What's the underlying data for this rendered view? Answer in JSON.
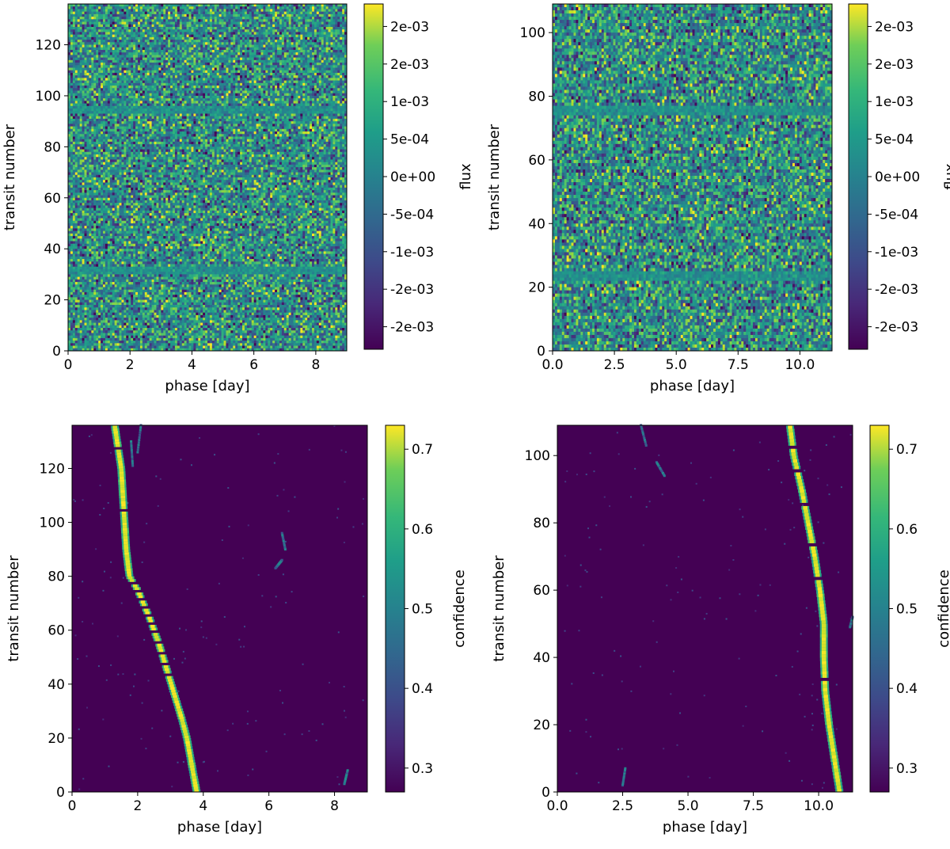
{
  "colors": {
    "viridis_bottom": "#440154",
    "viridis_mid": "#21908c",
    "viridis_top": "#fde725",
    "axis": "#000000"
  },
  "chart_data": [
    {
      "type": "heatmap",
      "id": "flux-a",
      "xlabel": "phase [day]",
      "ylabel": "transit number",
      "xlim": [
        0,
        9
      ],
      "ylim": [
        0,
        136
      ],
      "xticks": [
        0,
        2,
        4,
        6,
        8
      ],
      "xtick_labels": [
        "0",
        "2",
        "4",
        "6",
        "8"
      ],
      "yticks": [
        0,
        20,
        40,
        60,
        80,
        100,
        120
      ],
      "ytick_labels": [
        "0",
        "20",
        "40",
        "60",
        "80",
        "100",
        "120"
      ],
      "colorbar": {
        "label": "flux",
        "vmin": -0.0023,
        "vmax": 0.0023,
        "ticks": [
          -0.002,
          -0.0015,
          -0.001,
          -0.0005,
          0,
          0.0005,
          0.001,
          0.0015,
          0.002
        ],
        "tick_labels": [
          "-2e-03",
          "-2e-03",
          "-1e-03",
          "-5e-04",
          "0e+00",
          "5e-04",
          "1e-03",
          "2e-03",
          "2e-03"
        ]
      },
      "field": "noise",
      "quiet_rows": [
        104,
        41
      ]
    },
    {
      "type": "heatmap",
      "id": "flux-b",
      "xlabel": "phase [day]",
      "ylabel": "transit number",
      "xlim": [
        0,
        11.3
      ],
      "ylim": [
        0,
        109
      ],
      "xticks": [
        0,
        2.5,
        5,
        7.5,
        10
      ],
      "xtick_labels": [
        "0.0",
        "2.5",
        "5.0",
        "7.5",
        "10.0"
      ],
      "yticks": [
        0,
        20,
        40,
        60,
        80,
        100
      ],
      "ytick_labels": [
        "0",
        "20",
        "40",
        "60",
        "80",
        "100"
      ],
      "colorbar": {
        "label": "flux",
        "vmin": -0.0023,
        "vmax": 0.0023,
        "ticks": [
          -0.002,
          -0.0015,
          -0.001,
          -0.0005,
          0,
          0.0005,
          0.001,
          0.0015,
          0.002
        ],
        "tick_labels": [
          "-2e-03",
          "-2e-03",
          "-1e-03",
          "-5e-04",
          "0e+00",
          "5e-04",
          "1e-03",
          "2e-03",
          "2e-03"
        ]
      },
      "field": "noise",
      "quiet_rows": [
        33,
        85
      ]
    },
    {
      "type": "heatmap",
      "id": "confidence-a",
      "xlabel": "phase [day]",
      "ylabel": "transit number",
      "xlim": [
        0,
        9
      ],
      "ylim": [
        0,
        136
      ],
      "xticks": [
        0,
        2,
        4,
        6,
        8
      ],
      "xtick_labels": [
        "0",
        "2",
        "4",
        "6",
        "8"
      ],
      "yticks": [
        0,
        20,
        40,
        60,
        80,
        100,
        120
      ],
      "ytick_labels": [
        "0",
        "20",
        "40",
        "60",
        "80",
        "100",
        "120"
      ],
      "colorbar": {
        "label": "confidence",
        "vmin": 0.27,
        "vmax": 0.73,
        "ticks": [
          0.3,
          0.4,
          0.5,
          0.6,
          0.7
        ],
        "tick_labels": [
          "0.3",
          "0.4",
          "0.5",
          "0.6",
          "0.7"
        ]
      },
      "field": "track",
      "track": {
        "transit": [
          0,
          10,
          20,
          27,
          35,
          45,
          55,
          65,
          75,
          80,
          90,
          100,
          110,
          120,
          128,
          136
        ],
        "phase": [
          3.8,
          3.65,
          3.5,
          3.35,
          3.15,
          2.9,
          2.65,
          2.35,
          2.0,
          1.75,
          1.65,
          1.6,
          1.55,
          1.5,
          1.4,
          1.3
        ]
      },
      "gaps": [
        127,
        104,
        77,
        74,
        71,
        68,
        65,
        62,
        59,
        55,
        51,
        47,
        43
      ],
      "faint_features": [
        {
          "transit": [
            136,
            126
          ],
          "phase": [
            2.1,
            2.0
          ]
        },
        {
          "transit": [
            130,
            121
          ],
          "phase": [
            1.8,
            1.85
          ]
        },
        {
          "transit": [
            83,
            86
          ],
          "phase": [
            6.2,
            6.4
          ]
        },
        {
          "transit": [
            90,
            96
          ],
          "phase": [
            6.5,
            6.4
          ]
        },
        {
          "transit": [
            3,
            8
          ],
          "phase": [
            8.3,
            8.4
          ]
        }
      ]
    },
    {
      "type": "heatmap",
      "id": "confidence-b",
      "xlabel": "phase [day]",
      "ylabel": "transit number",
      "xlim": [
        0,
        11.3
      ],
      "ylim": [
        0,
        109
      ],
      "xticks": [
        0,
        2.5,
        5,
        7.5,
        10
      ],
      "xtick_labels": [
        "0.0",
        "2.5",
        "5.0",
        "7.5",
        "10.0"
      ],
      "yticks": [
        0,
        20,
        40,
        60,
        80,
        100
      ],
      "ytick_labels": [
        "0",
        "20",
        "40",
        "60",
        "80",
        "100"
      ],
      "colorbar": {
        "label": "confidence",
        "vmin": 0.27,
        "vmax": 0.73,
        "ticks": [
          0.3,
          0.4,
          0.5,
          0.6,
          0.7
        ],
        "tick_labels": [
          "0.3",
          "0.4",
          "0.5",
          "0.6",
          "0.7"
        ]
      },
      "field": "track",
      "track": {
        "transit": [
          0,
          10,
          20,
          30,
          40,
          50,
          60,
          70,
          80,
          90,
          100,
          109
        ],
        "phase": [
          10.8,
          10.6,
          10.4,
          10.25,
          10.2,
          10.2,
          10.05,
          9.85,
          9.6,
          9.35,
          9.05,
          8.9
        ]
      },
      "gaps": [
        33,
        63,
        73,
        85,
        95,
        102
      ],
      "faint_features": [
        {
          "transit": [
            109,
            103
          ],
          "phase": [
            3.2,
            3.4
          ]
        },
        {
          "transit": [
            98,
            94
          ],
          "phase": [
            3.8,
            4.1
          ]
        },
        {
          "transit": [
            2,
            7
          ],
          "phase": [
            2.5,
            2.6
          ]
        },
        {
          "transit": [
            49,
            52
          ],
          "phase": [
            11.2,
            11.3
          ]
        }
      ]
    }
  ]
}
